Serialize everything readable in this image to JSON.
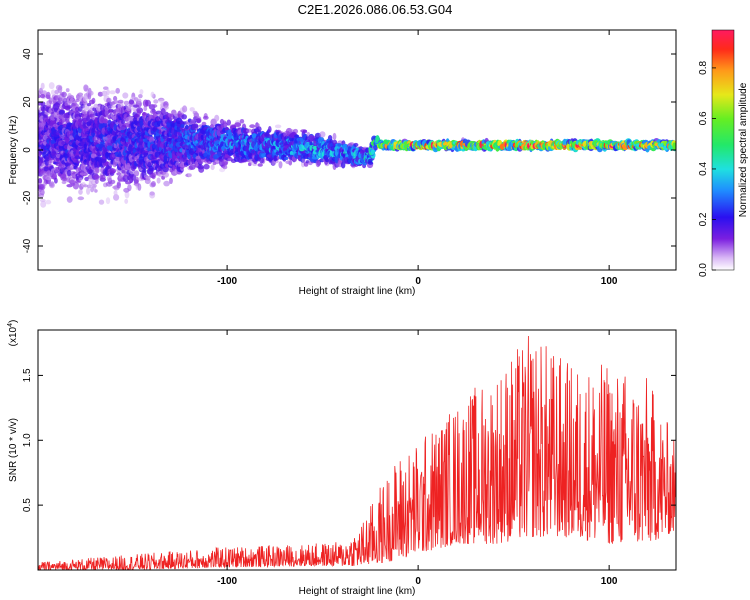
{
  "title": "C2E1.2026.086.06.53.G04",
  "chart_data": [
    {
      "type": "heatmap",
      "xlabel": "Height of straight line (km)",
      "ylabel": "Frequency (Hz)",
      "xlim": [
        -199,
        135
      ],
      "ylim": [
        -50,
        50
      ],
      "x_ticks": [
        {
          "value": -100,
          "label": "-100"
        },
        {
          "value": 0,
          "label": "0"
        },
        {
          "value": 100,
          "label": "100"
        }
      ],
      "y_ticks": [
        {
          "value": -40,
          "label": "-40"
        },
        {
          "value": -20,
          "label": "-20"
        },
        {
          "value": 0,
          "label": "0"
        },
        {
          "value": 20,
          "label": "20"
        },
        {
          "value": 40,
          "label": "40"
        }
      ],
      "colorbar": {
        "label": "Normalized spectral amplitude",
        "range": [
          0,
          0.95
        ],
        "ticks": [
          {
            "value": 0,
            "label": "0.0"
          },
          {
            "value": 0.2,
            "label": "0.2"
          },
          {
            "value": 0.4,
            "label": "0.4"
          },
          {
            "value": 0.6,
            "label": "0.6"
          },
          {
            "value": 0.8,
            "label": "0.8"
          }
        ]
      },
      "ridge": {
        "x": [
          -199,
          -150,
          -100,
          -50,
          -25,
          -22,
          -20,
          0,
          50,
          100,
          135
        ],
        "center_freq": [
          4,
          3,
          3,
          0,
          -3,
          5,
          2,
          2,
          2,
          2,
          2
        ],
        "spread": [
          30,
          26,
          12,
          8,
          5,
          3,
          2,
          2,
          2,
          2,
          2
        ],
        "peak_amplitude": [
          0.22,
          0.25,
          0.33,
          0.4,
          0.45,
          0.55,
          0.8,
          0.9,
          0.92,
          0.9,
          0.88
        ]
      }
    },
    {
      "type": "line",
      "xlabel": "Height of straight line (km)",
      "ylabel": "SNR (10 * v/v)",
      "y_multiplier": "(x10",
      "y_multiplier_exp": "4",
      "y_multiplier_close": ")",
      "xlim": [
        -199,
        135
      ],
      "ylim": [
        0,
        1.85
      ],
      "y_unit": "x10^4",
      "x_ticks": [
        {
          "value": -100,
          "label": "-100"
        },
        {
          "value": 0,
          "label": "0"
        },
        {
          "value": 100,
          "label": "100"
        }
      ],
      "y_ticks": [
        {
          "value": 0.5,
          "label": "0.5"
        },
        {
          "value": 1.0,
          "label": "1.0"
        },
        {
          "value": 1.5,
          "label": "1.5"
        }
      ],
      "color": "#ee2222",
      "envelope": {
        "x": [
          -199,
          -150,
          -100,
          -60,
          -40,
          -30,
          -20,
          -10,
          0,
          20,
          40,
          60,
          80,
          100,
          120,
          135
        ],
        "max": [
          0.06,
          0.12,
          0.18,
          0.2,
          0.22,
          0.35,
          0.65,
          0.9,
          1.0,
          1.3,
          1.55,
          1.85,
          1.6,
          1.6,
          1.5,
          1.0
        ],
        "min": [
          0.0,
          0.0,
          0.02,
          0.03,
          0.03,
          0.03,
          0.05,
          0.08,
          0.12,
          0.2,
          0.2,
          0.25,
          0.25,
          0.2,
          0.2,
          0.3
        ]
      }
    }
  ]
}
